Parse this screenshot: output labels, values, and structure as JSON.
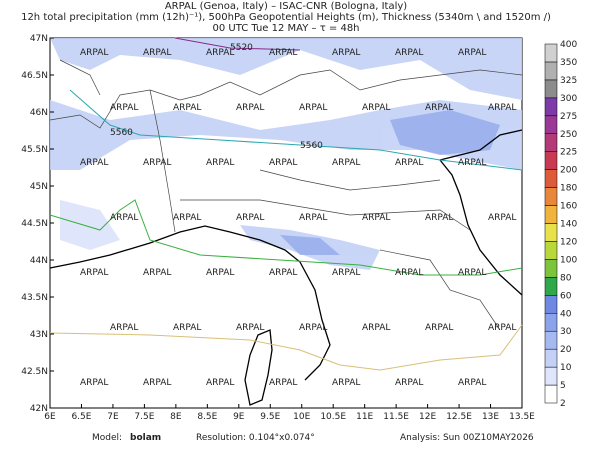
{
  "header": {
    "line1": "ARPAL (Genoa, Italy)  –  ISAC-CNR (Bologna, Italy)",
    "line2": "12h total precipitation (mm (12h)⁻¹), 500hPa Geopotential Heights (m), Thickness (5340m \\ and 1520m /)",
    "line3": "00 UTC Tue 12 MAY  –  τ = 48h"
  },
  "map": {
    "lon_labels": [
      "6E",
      "6.5E",
      "7E",
      "7.5E",
      "8E",
      "8.5E",
      "9E",
      "9.5E",
      "10E",
      "10.5E",
      "11E",
      "11.5E",
      "12E",
      "12.5E",
      "13E",
      "13.5E"
    ],
    "lat_labels": [
      "42N",
      "42.5N",
      "43N",
      "43.5N",
      "44N",
      "44.5N",
      "45N",
      "45.5N",
      "46N",
      "46.5N",
      "47N"
    ],
    "contour_labels": [
      "5520",
      "5560",
      "5560"
    ],
    "watermark": "ARPAL"
  },
  "colorbar": {
    "labels": [
      2,
      5,
      10,
      20,
      30,
      40,
      60,
      80,
      100,
      120,
      140,
      160,
      180,
      200,
      225,
      250,
      275,
      300,
      325,
      350,
      400
    ],
    "colors": [
      "#ffffff",
      "#dfe6fb",
      "#c3d1f6",
      "#a7b9f1",
      "#8ca2ea",
      "#6f88e1",
      "#2ea84a",
      "#7cc43a",
      "#b9d93b",
      "#e9e14a",
      "#f0b43c",
      "#e8873a",
      "#de5b3a",
      "#c93a52",
      "#b43a78",
      "#9a3a96",
      "#7d3aa8",
      "#8c8c8c",
      "#b0b0b0",
      "#d0d0d0"
    ]
  },
  "footer": {
    "model_label": "Model:",
    "model": "bolam",
    "resolution": "Resolution: 0.104°x0.074°",
    "analysis": "Analysis: Sun 00Z10MAY2026"
  }
}
